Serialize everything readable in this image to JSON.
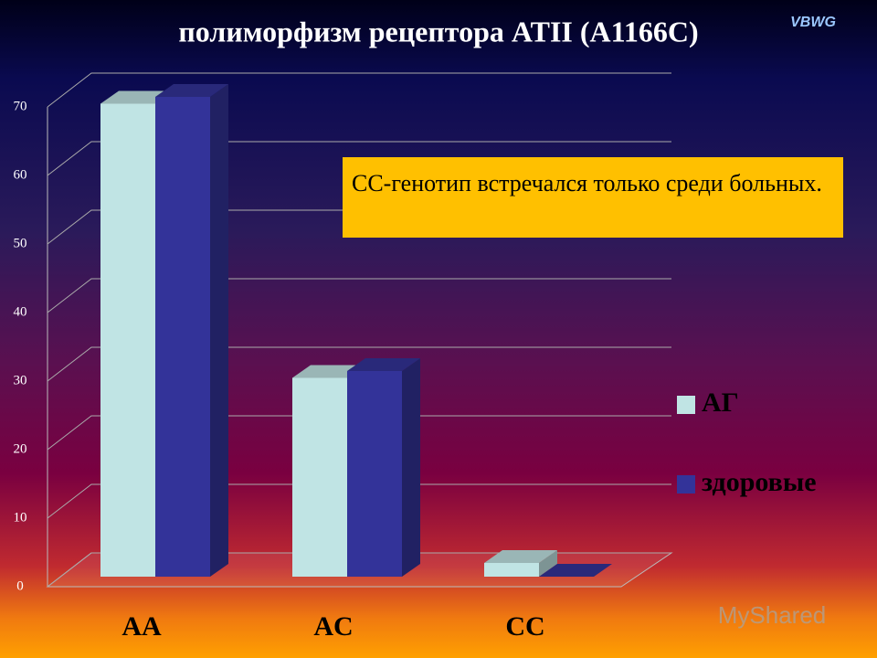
{
  "chart_data": {
    "type": "bar3d",
    "title": "полиморфизм рецептора ATII (A1166C)",
    "categories": [
      "AA",
      "AC",
      "CC"
    ],
    "series": [
      {
        "name": "АГ",
        "color": "#c0e4e4",
        "values": [
          69,
          29,
          2
        ]
      },
      {
        "name": "здоровые",
        "color": "#333399",
        "values": [
          70,
          30,
          0
        ]
      }
    ],
    "ylim": [
      0,
      70
    ],
    "yticks": [
      0,
      10,
      20,
      30,
      40,
      50,
      60,
      70
    ],
    "grid": true,
    "legend": "right",
    "annotation": "CC-генотип встречался только среди больных."
  },
  "brand": "VBWG",
  "watermark": "MyShared"
}
